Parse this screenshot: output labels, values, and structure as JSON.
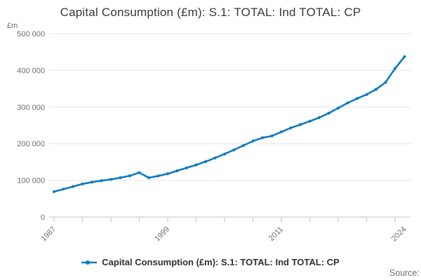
{
  "header": {
    "title": "Capital Consumption (£m): S.1: TOTAL: Ind TOTAL: CP"
  },
  "y_axis": {
    "unit": "£m",
    "ticks": [
      {
        "value": 0,
        "label": "0"
      },
      {
        "value": 100000,
        "label": "100 000"
      },
      {
        "value": 200000,
        "label": "200 000"
      },
      {
        "value": 300000,
        "label": "300 000"
      },
      {
        "value": 400000,
        "label": "400 000"
      },
      {
        "value": 500000,
        "label": "500 000"
      }
    ]
  },
  "x_axis": {
    "first_year": 1987,
    "last_year": 2024,
    "tick_step_years": 3,
    "labelled_years": [
      "1987",
      "1999",
      "2011",
      "2024"
    ]
  },
  "legend": {
    "label": "Capital Consumption (£m): S.1: TOTAL: Ind TOTAL: CP"
  },
  "source": {
    "label": "Source:"
  },
  "colors": {
    "line": "#0f7bbf",
    "axis": "#c7cfe2",
    "grid": "#e4e4e4",
    "tick_text": "#6f6f6f",
    "title_text": "#383838"
  },
  "chart_data": {
    "type": "line",
    "title": "Capital Consumption (£m): S.1: TOTAL: Ind TOTAL: CP",
    "xlabel": "",
    "ylabel": "£m",
    "ylim": [
      0,
      500000
    ],
    "grid": "horizontal",
    "legend_position": "bottom",
    "x": [
      1987,
      1988,
      1989,
      1990,
      1991,
      1992,
      1993,
      1994,
      1995,
      1996,
      1997,
      1998,
      1999,
      2000,
      2001,
      2002,
      2003,
      2004,
      2005,
      2006,
      2007,
      2008,
      2009,
      2010,
      2011,
      2012,
      2013,
      2014,
      2015,
      2016,
      2017,
      2018,
      2019,
      2020,
      2021,
      2022,
      2023,
      2024
    ],
    "series": [
      {
        "name": "Capital Consumption (£m): S.1: TOTAL: Ind TOTAL: CP",
        "values": [
          69000,
          76000,
          83000,
          90000,
          95000,
          99000,
          102500,
          107000,
          112500,
          121000,
          107000,
          112000,
          118000,
          126000,
          134000,
          142000,
          151000,
          161000,
          171500,
          183000,
          195000,
          207000,
          216000,
          221000,
          232000,
          243000,
          252000,
          261000,
          271000,
          283000,
          297000,
          311000,
          323000,
          334000,
          348000,
          367000,
          405000,
          437000
        ]
      }
    ]
  }
}
